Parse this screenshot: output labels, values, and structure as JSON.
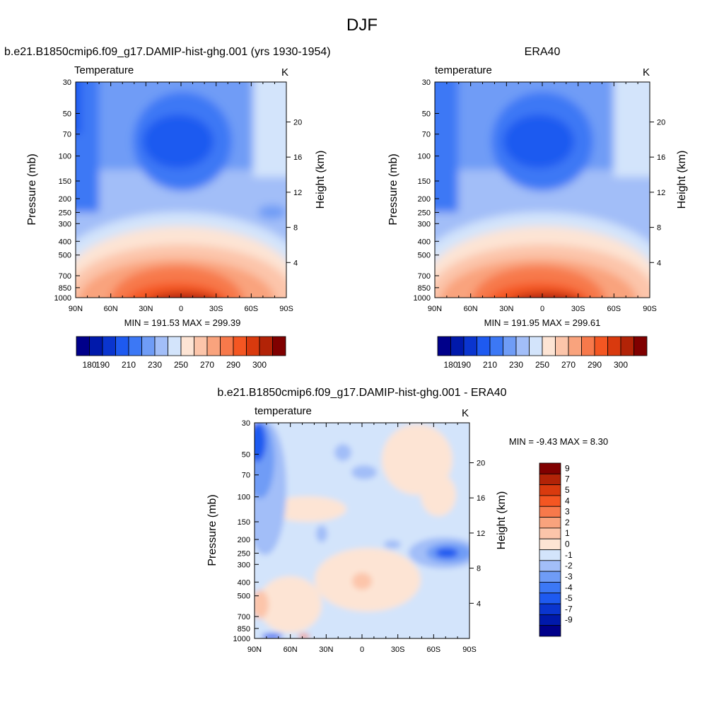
{
  "page": {
    "title": "DJF"
  },
  "panels": [
    {
      "title": "b.e21.B1850cmip6.f09_g17.DAMIP-hist-ghg.001 (yrs 1930-1954)",
      "left_label": "Temperature",
      "units": "K",
      "ylabel": "Pressure (mb)",
      "ylabel_right": "Height (km)",
      "stats": "MIN = 191.53  MAX = 299.39"
    },
    {
      "title": "ERA40",
      "left_label": "temperature",
      "units": "K",
      "ylabel": "Pressure (mb)",
      "ylabel_right": "Height (km)",
      "stats": "MIN = 191.95  MAX = 299.61"
    },
    {
      "title": "b.e21.B1850cmip6.f09_g17.DAMIP-hist-ghg.001 - ERA40",
      "left_label": "temperature",
      "units": "K",
      "ylabel": "Pressure (mb)",
      "ylabel_right": "Height (km)",
      "stats": "MIN =  -9.43  MAX =   8.30"
    }
  ],
  "axes": {
    "x_ticks": [
      "90N",
      "60N",
      "30N",
      "0",
      "30S",
      "60S",
      "90S"
    ],
    "pressure_ticks": [
      "30",
      "50",
      "70",
      "100",
      "150",
      "200",
      "250",
      "300",
      "400",
      "500",
      "700",
      "850",
      "1000"
    ],
    "height_ticks": [
      "20",
      "16",
      "12",
      "8",
      "4"
    ]
  },
  "colorbar_abs": {
    "labels": [
      "180",
      "190",
      "210",
      "230",
      "250",
      "270",
      "290",
      "300"
    ],
    "colors": [
      "#00008a",
      "#0019ab",
      "#0a35cf",
      "#1e5af0",
      "#3c78f5",
      "#6f9cf6",
      "#a2bef8",
      "#d3e4fb",
      "#fde4d4",
      "#fcc5aa",
      "#f9a37d",
      "#f7794b",
      "#f45622",
      "#d93a0e",
      "#b22307",
      "#800000"
    ]
  },
  "colorbar_diff": {
    "labels": [
      "9",
      "7",
      "5",
      "4",
      "3",
      "2",
      "1",
      "0",
      "-1",
      "-2",
      "-3",
      "-4",
      "-5",
      "-7",
      "-9"
    ],
    "colors": [
      "#800000",
      "#b22307",
      "#d93a0e",
      "#f45622",
      "#f7794b",
      "#f9a37d",
      "#fcc5aa",
      "#fde4d4",
      "#d3e4fb",
      "#a2bef8",
      "#6f9cf6",
      "#3c78f5",
      "#1e5af0",
      "#0a35cf",
      "#0019ab",
      "#00008a"
    ]
  },
  "chart_data": [
    {
      "type": "heatmap",
      "title": "b.e21.B1850cmip6.f09_g17.DAMIP-hist-ghg.001 (yrs 1930-1954)",
      "variable": "Temperature",
      "units": "K",
      "xlabel": "",
      "ylabel": "Pressure (mb)",
      "ylabel_right": "Height (km)",
      "x_ticks": [
        "90N",
        "60N",
        "30N",
        "0",
        "30S",
        "60S",
        "90S"
      ],
      "y_ticks": [
        30,
        50,
        70,
        100,
        150,
        200,
        250,
        300,
        400,
        500,
        700,
        850,
        1000
      ],
      "y_scale": "log",
      "ylim": [
        1000,
        30
      ],
      "min": 191.53,
      "max": 299.39,
      "colorbar_ticks": [
        180,
        190,
        210,
        230,
        250,
        270,
        290,
        300
      ]
    },
    {
      "type": "heatmap",
      "title": "ERA40",
      "variable": "temperature",
      "units": "K",
      "xlabel": "",
      "ylabel": "Pressure (mb)",
      "ylabel_right": "Height (km)",
      "x_ticks": [
        "90N",
        "60N",
        "30N",
        "0",
        "30S",
        "60S",
        "90S"
      ],
      "y_ticks": [
        30,
        50,
        70,
        100,
        150,
        200,
        250,
        300,
        400,
        500,
        700,
        850,
        1000
      ],
      "y_scale": "log",
      "ylim": [
        1000,
        30
      ],
      "min": 191.95,
      "max": 299.61,
      "colorbar_ticks": [
        180,
        190,
        210,
        230,
        250,
        270,
        290,
        300
      ]
    },
    {
      "type": "heatmap",
      "title": "b.e21.B1850cmip6.f09_g17.DAMIP-hist-ghg.001 - ERA40",
      "variable": "temperature",
      "units": "K",
      "xlabel": "",
      "ylabel": "Pressure (mb)",
      "ylabel_right": "Height (km)",
      "x_ticks": [
        "90N",
        "60N",
        "30N",
        "0",
        "30S",
        "60S",
        "90S"
      ],
      "y_ticks": [
        30,
        50,
        70,
        100,
        150,
        200,
        250,
        300,
        400,
        500,
        700,
        850,
        1000
      ],
      "y_scale": "log",
      "ylim": [
        1000,
        30
      ],
      "min": -9.43,
      "max": 8.3,
      "colorbar_ticks": [
        9,
        7,
        5,
        4,
        3,
        2,
        1,
        0,
        -1,
        -2,
        -3,
        -4,
        -5,
        -7,
        -9
      ]
    }
  ]
}
